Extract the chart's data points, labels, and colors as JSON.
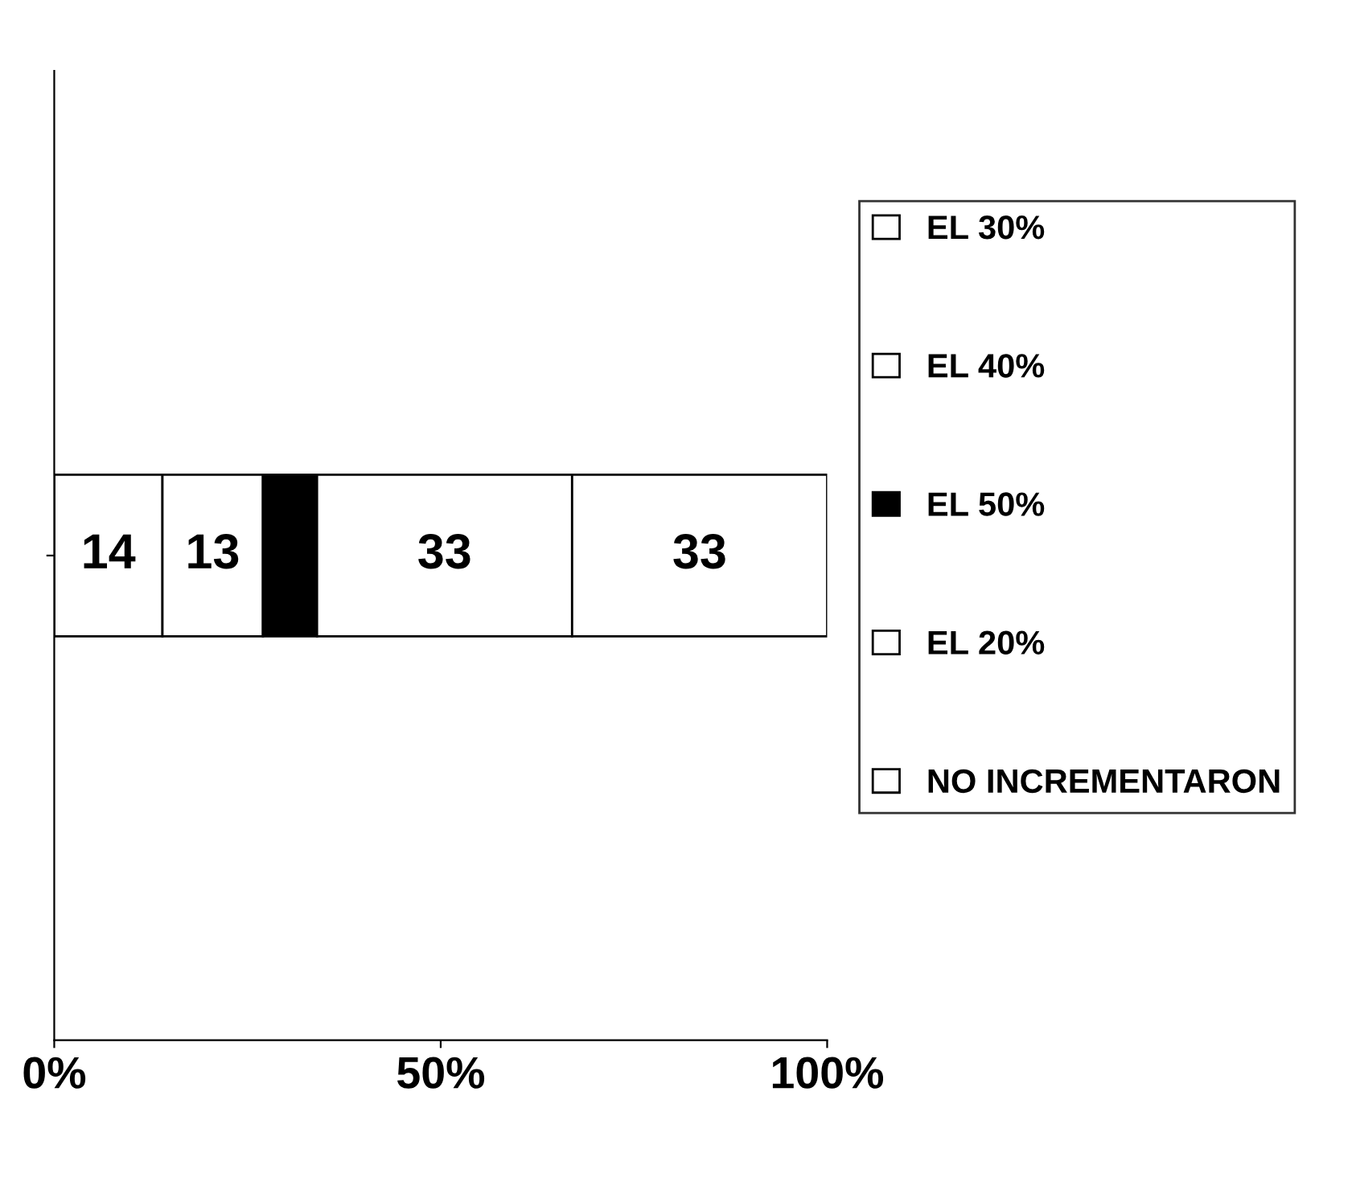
{
  "chart_data": {
    "type": "bar",
    "orientation": "horizontal",
    "stacked": true,
    "categories": [
      null
    ],
    "series": [
      {
        "name": "NO INCREMENTARON",
        "color": "#ffffff",
        "values": [
          14
        ],
        "value_labels": [
          "14"
        ]
      },
      {
        "name": "EL 20%",
        "color": "#ffffff",
        "values": [
          13
        ],
        "value_labels": [
          "13"
        ]
      },
      {
        "name": "EL 50%",
        "color": "#000000",
        "values": [
          7
        ],
        "value_labels": [
          null
        ]
      },
      {
        "name": "EL 40%",
        "color": "#ffffff",
        "values": [
          33
        ],
        "value_labels": [
          "33"
        ]
      },
      {
        "name": "EL 30%",
        "color": "#ffffff",
        "values": [
          33
        ],
        "value_labels": [
          "33"
        ]
      }
    ],
    "xlim": [
      0,
      100
    ],
    "xticks": [
      {
        "value": 0,
        "label": "0%"
      },
      {
        "value": 50,
        "label": "50%"
      },
      {
        "value": 100,
        "label": "100%"
      }
    ],
    "legend": "right",
    "grid": false
  }
}
